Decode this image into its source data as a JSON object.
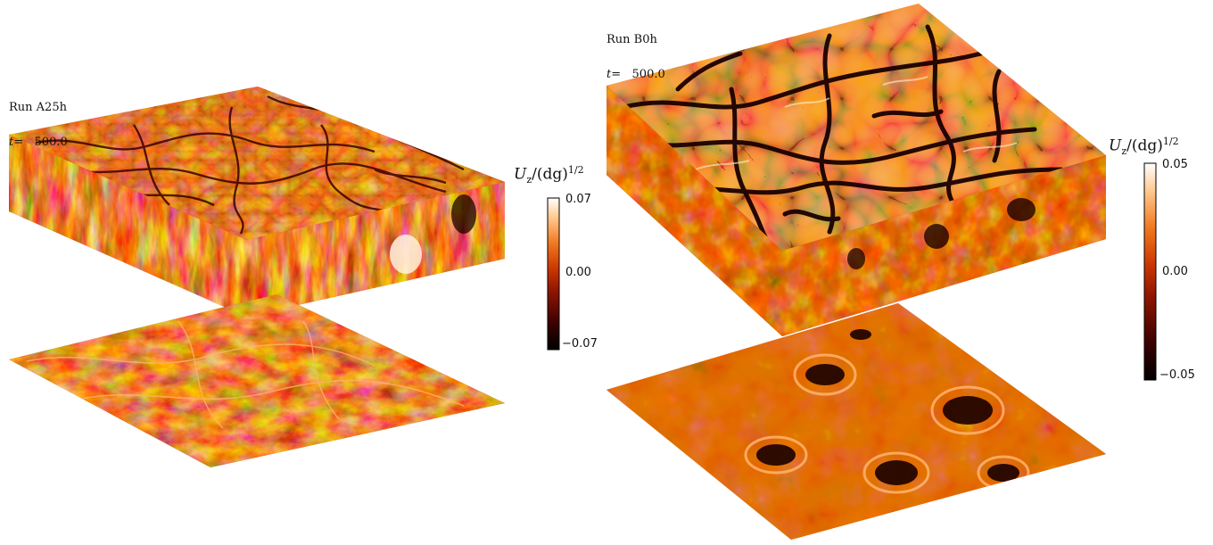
{
  "panels": [
    {
      "run_label": "Run A25h",
      "time_symbol": "t",
      "time_value": "500.0",
      "colorbar": {
        "quantity": "U",
        "quantity_sub": "z",
        "denominator": "/(dg)",
        "exponent": "1/2",
        "ticks": [
          "0.07",
          "0.00",
          "−0.07"
        ]
      }
    },
    {
      "run_label": "Run B0h",
      "time_symbol": "t",
      "time_value": "500.0",
      "colorbar": {
        "quantity": "U",
        "quantity_sub": "z",
        "denominator": "/(dg)",
        "exponent": "1/2",
        "ticks": [
          "0.05",
          "0.00",
          "−0.05"
        ]
      }
    }
  ],
  "colors": {
    "colormap": [
      "#000000",
      "#3a0000",
      "#8c1500",
      "#c83200",
      "#f0781e",
      "#ffc88c",
      "#ffffff"
    ],
    "background": "#ffffff"
  }
}
